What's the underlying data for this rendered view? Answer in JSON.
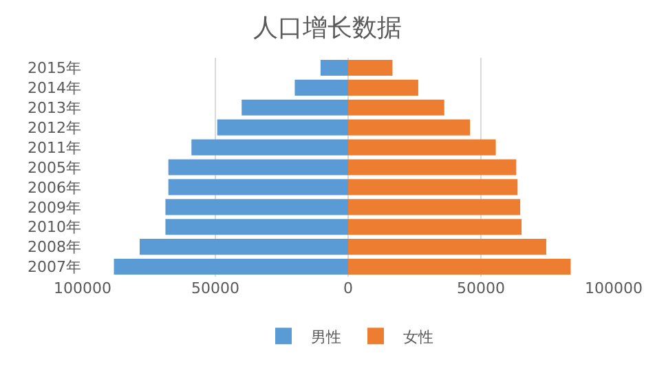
{
  "chart_data": {
    "type": "bar",
    "title": "人口增长数据",
    "orientation": "horizontal",
    "stacked": true,
    "categories": [
      "2015年",
      "2014年",
      "2013年",
      "2012年",
      "2011年",
      "2005年",
      "2006年",
      "2009年",
      "2010年",
      "2008年",
      "2007年"
    ],
    "series": [
      {
        "name": "男性",
        "color": "#5b9bd5",
        "values": [
          -10400,
          -20100,
          -40100,
          -49300,
          -59000,
          -67700,
          -67700,
          -68800,
          -68800,
          -78500,
          -88200
        ]
      },
      {
        "name": "女性",
        "color": "#ed7d31",
        "values": [
          16700,
          26400,
          36200,
          45900,
          55600,
          63300,
          63800,
          64800,
          65300,
          74600,
          83800
        ]
      }
    ],
    "xlim": [
      -100000,
      100000
    ],
    "xticks": [
      {
        "value": -100000,
        "label": "100000"
      },
      {
        "value": -50000,
        "label": "50000"
      },
      0,
      50000,
      100000
    ],
    "grid": "x",
    "legend": "bottom"
  }
}
